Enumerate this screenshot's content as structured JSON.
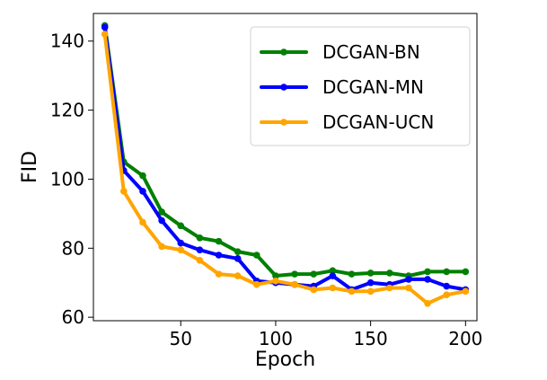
{
  "chart_data": {
    "type": "line",
    "xlabel": "Epoch",
    "ylabel": "FID",
    "xlim": [
      4,
      206
    ],
    "ylim": [
      59,
      148
    ],
    "xticks": [
      50,
      100,
      150,
      200
    ],
    "yticks": [
      60,
      80,
      100,
      120,
      140
    ],
    "grid": false,
    "legend_position": "top-right",
    "x": [
      10,
      20,
      30,
      40,
      50,
      60,
      70,
      80,
      90,
      100,
      110,
      120,
      130,
      140,
      150,
      160,
      170,
      180,
      190,
      200
    ],
    "series": [
      {
        "name": "DCGAN-BN",
        "color": "#008000",
        "values": [
          144.5,
          105.0,
          101.0,
          90.5,
          86.5,
          83.0,
          82.0,
          79.0,
          78.0,
          72.0,
          72.5,
          72.5,
          73.5,
          72.5,
          72.8,
          72.8,
          72.0,
          73.2,
          73.2,
          73.2
        ]
      },
      {
        "name": "DCGAN-MN",
        "color": "#0000ff",
        "values": [
          144.0,
          102.5,
          96.5,
          88.0,
          81.5,
          79.5,
          78.0,
          77.0,
          70.5,
          70.0,
          69.5,
          69.0,
          72.0,
          68.0,
          70.0,
          69.5,
          71.0,
          71.0,
          69.0,
          68.0
        ]
      },
      {
        "name": "DCGAN-UCN",
        "color": "#ffa500",
        "values": [
          142.0,
          96.5,
          87.5,
          80.5,
          79.5,
          76.5,
          72.5,
          72.0,
          69.5,
          70.5,
          69.5,
          68.0,
          68.5,
          67.5,
          67.5,
          68.5,
          68.5,
          64.0,
          66.5,
          67.5
        ]
      }
    ]
  }
}
